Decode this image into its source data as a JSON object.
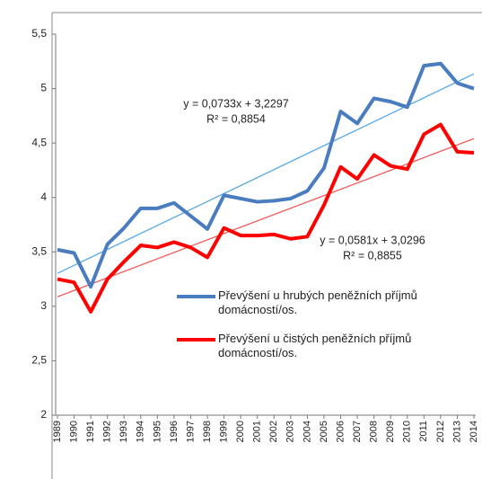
{
  "chart_data": {
    "type": "line",
    "categories": [
      "1989",
      "1990",
      "1991",
      "1992",
      "1993",
      "1994",
      "1995",
      "1996",
      "1997",
      "1998",
      "1999",
      "2000",
      "2001",
      "2002",
      "2003",
      "2004",
      "2005",
      "2006",
      "2007",
      "2008",
      "2009",
      "2010",
      "2011",
      "2012",
      "2013",
      "2014"
    ],
    "series": [
      {
        "name": "Převýšení u hrubých peněžních příjmů domácností/os.",
        "color": "#4a7cc0",
        "values": [
          3.52,
          3.49,
          3.18,
          3.57,
          3.72,
          3.9,
          3.9,
          3.95,
          3.83,
          3.71,
          4.02,
          3.99,
          3.96,
          3.97,
          3.99,
          4.06,
          4.27,
          4.79,
          4.68,
          4.91,
          4.88,
          4.83,
          5.21,
          5.23,
          5.05,
          5.0
        ]
      },
      {
        "name": "Převýšení u čistých peněžních příjmů domácností/os.",
        "color": "#ff0000",
        "values": [
          3.25,
          3.22,
          2.95,
          3.25,
          3.41,
          3.56,
          3.54,
          3.59,
          3.54,
          3.45,
          3.72,
          3.65,
          3.65,
          3.66,
          3.62,
          3.64,
          3.93,
          4.28,
          4.17,
          4.39,
          4.29,
          4.26,
          4.58,
          4.67,
          4.42,
          4.41
        ]
      }
    ],
    "trendlines": [
      {
        "slope": 0.0733,
        "intercept": 3.2297,
        "color": "#5aaae6",
        "equation": "y = 0,0733x + 3,2297",
        "r2": "R² = 0,8854"
      },
      {
        "slope": 0.0581,
        "intercept": 3.0296,
        "color": "#f05a5a",
        "equation": "y = 0,0581x + 3,0296",
        "r2": "R² = 0,8855"
      }
    ],
    "ylim": [
      2,
      5.5
    ],
    "yticks": [
      {
        "value": 2,
        "label": "2"
      },
      {
        "value": 2.5,
        "label": "2,5"
      },
      {
        "value": 3,
        "label": "3"
      },
      {
        "value": 3.5,
        "label": "3,5"
      },
      {
        "value": 4,
        "label": "4"
      },
      {
        "value": 4.5,
        "label": "4,5"
      },
      {
        "value": 5,
        "label": "5"
      },
      {
        "value": 5.5,
        "label": "5,5"
      }
    ]
  }
}
